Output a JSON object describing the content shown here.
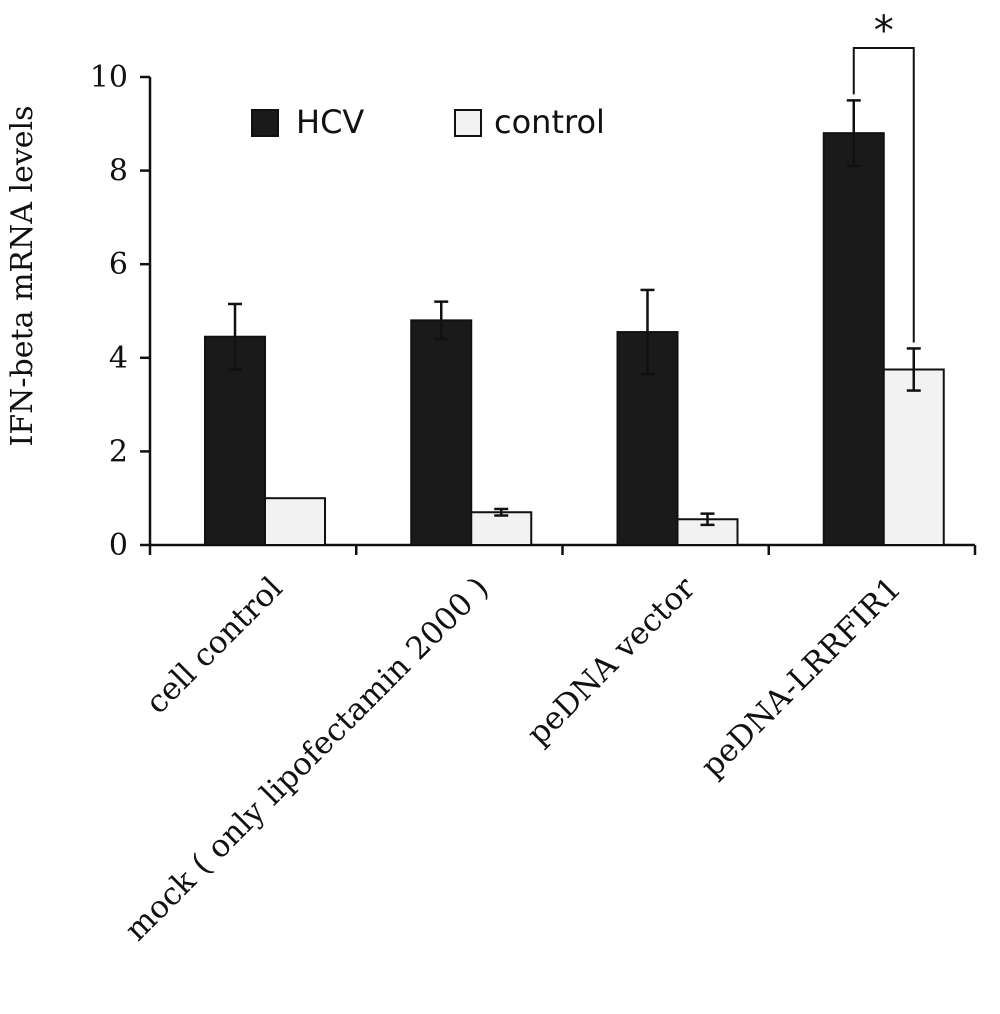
{
  "chart_data": {
    "type": "bar",
    "title": "",
    "xlabel": "",
    "ylabel": "IFN-beta  mRNA levels",
    "ylim": [
      0,
      10
    ],
    "yticks": [
      0,
      2,
      4,
      6,
      8,
      10
    ],
    "categories": [
      "cell control",
      "mock ( only lipofectamin 2000 )",
      "peDNA vector",
      "peDNA-LRRFIR1"
    ],
    "series": [
      {
        "name": "HCV",
        "color": "#1a1a1a",
        "values": [
          4.45,
          4.8,
          4.55,
          8.8
        ],
        "errors": [
          0.7,
          0.4,
          0.9,
          0.7
        ]
      },
      {
        "name": "control",
        "color": "#f2f2f2",
        "values": [
          1.0,
          0.7,
          0.55,
          3.75
        ],
        "errors": [
          0.0,
          0.07,
          0.12,
          0.45
        ]
      }
    ],
    "legend_position": "top-left",
    "grid": false,
    "annotations": [
      {
        "text": "*",
        "between": "peDNA-LRRFIR1 HCV vs control"
      }
    ]
  }
}
